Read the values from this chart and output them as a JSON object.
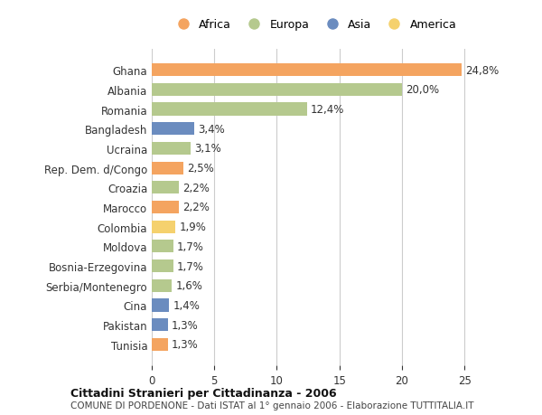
{
  "countries": [
    "Ghana",
    "Albania",
    "Romania",
    "Bangladesh",
    "Ucraina",
    "Rep. Dem. d/Congo",
    "Croazia",
    "Marocco",
    "Colombia",
    "Moldova",
    "Bosnia-Erzegovina",
    "Serbia/Montenegro",
    "Cina",
    "Pakistan",
    "Tunisia"
  ],
  "values": [
    24.8,
    20.0,
    12.4,
    3.4,
    3.1,
    2.5,
    2.2,
    2.2,
    1.9,
    1.7,
    1.7,
    1.6,
    1.4,
    1.3,
    1.3
  ],
  "labels": [
    "24,8%",
    "20,0%",
    "12,4%",
    "3,4%",
    "3,1%",
    "2,5%",
    "2,2%",
    "2,2%",
    "1,9%",
    "1,7%",
    "1,7%",
    "1,6%",
    "1,4%",
    "1,3%",
    "1,3%"
  ],
  "continents": [
    "Africa",
    "Europa",
    "Europa",
    "Asia",
    "Europa",
    "Africa",
    "Europa",
    "Africa",
    "America",
    "Europa",
    "Europa",
    "Europa",
    "Asia",
    "Asia",
    "Africa"
  ],
  "colors": {
    "Africa": "#F4A460",
    "Europa": "#B5C98E",
    "Asia": "#6B8CBF",
    "America": "#F5D16E"
  },
  "legend_order": [
    "Africa",
    "Europa",
    "Asia",
    "America"
  ],
  "xlim": [
    0,
    26
  ],
  "xticks": [
    0,
    5,
    10,
    15,
    20,
    25
  ],
  "title": "Cittadini Stranieri per Cittadinanza - 2006",
  "subtitle": "COMUNE DI PORDENONE - Dati ISTAT al 1° gennaio 2006 - Elaborazione TUTTITALIA.IT",
  "bg_color": "#FFFFFF",
  "grid_color": "#CCCCCC",
  "bar_height": 0.65
}
